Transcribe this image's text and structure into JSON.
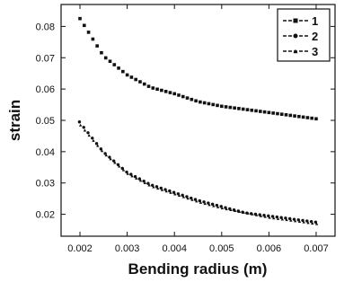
{
  "chart_data": {
    "type": "scatter",
    "title": "",
    "xlabel": "Bending radius (m)",
    "ylabel": "strain",
    "xlim": [
      0.0016,
      0.0074
    ],
    "ylim": [
      0.013,
      0.087
    ],
    "xticks": [
      0.002,
      0.003,
      0.004,
      0.005,
      0.006,
      0.007
    ],
    "xtick_labels": [
      "0.002",
      "0.003",
      "0.004",
      "0.005",
      "0.006",
      "0.007"
    ],
    "yticks": [
      0.02,
      0.03,
      0.04,
      0.05,
      0.06,
      0.07,
      0.08
    ],
    "ytick_labels": [
      "0.02",
      "0.03",
      "0.04",
      "0.05",
      "0.06",
      "0.07",
      "0.08"
    ],
    "grid": false,
    "legend_position": "top-right",
    "series": [
      {
        "name": "1",
        "marker": "square",
        "color": "#111111",
        "x": [
          0.002,
          0.0025,
          0.003,
          0.0035,
          0.004,
          0.0045,
          0.005,
          0.0055,
          0.006,
          0.0065,
          0.007
        ],
        "y": [
          0.0825,
          0.0705,
          0.0645,
          0.0605,
          0.0585,
          0.056,
          0.0545,
          0.0535,
          0.0525,
          0.0515,
          0.0505
        ]
      },
      {
        "name": "2",
        "marker": "circle",
        "color": "#111111",
        "x": [
          0.002,
          0.0025,
          0.003,
          0.0035,
          0.004,
          0.0045,
          0.005,
          0.0055,
          0.006,
          0.0065,
          0.007
        ],
        "y": [
          0.0495,
          0.04,
          0.0335,
          0.0295,
          0.027,
          0.0245,
          0.0225,
          0.0205,
          0.0195,
          0.0185,
          0.0175
        ]
      },
      {
        "name": "3",
        "marker": "triangle",
        "color": "#111111",
        "x": [
          0.002,
          0.0025,
          0.003,
          0.0035,
          0.004,
          0.0045,
          0.005,
          0.0055,
          0.006,
          0.0065,
          0.007
        ],
        "y": [
          0.0485,
          0.0395,
          0.033,
          0.029,
          0.0265,
          0.024,
          0.022,
          0.0205,
          0.019,
          0.018,
          0.017
        ]
      }
    ]
  }
}
